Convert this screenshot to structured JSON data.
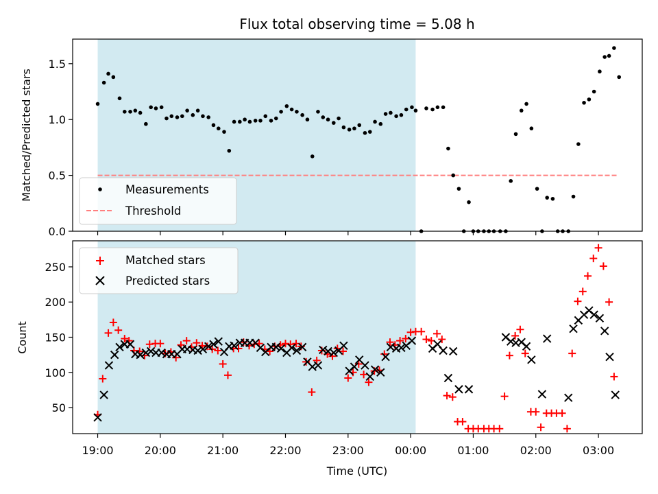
{
  "chart_data": {
    "type": "scatter",
    "title": "Flux total observing time = 5.08 h",
    "xlabel": "Time (UTC)",
    "x_ticks": [
      "19:00",
      "20:00",
      "21:00",
      "22:00",
      "23:00",
      "00:00",
      "01:00",
      "02:00",
      "03:00"
    ],
    "x_range_hours": [
      18.6,
      27.7
    ],
    "shaded_interval_hours": [
      19.0,
      24.08
    ],
    "colors": {
      "shade": "#add8e6",
      "measurements": "#000000",
      "threshold": "#ff7f7f",
      "matched": "#ff0000",
      "predicted": "#000000"
    },
    "top": {
      "ylabel": "Matched/Predicted stars",
      "ylim": [
        0,
        1.72
      ],
      "yticks": [
        "0.0",
        "0.5",
        "1.0",
        "1.5"
      ],
      "legend": {
        "placement": "lower-left",
        "entries": [
          "Measurements",
          "Threshold"
        ]
      },
      "threshold": {
        "name": "Threshold",
        "value": 0.5,
        "x_range_hours": [
          19.0,
          27.3
        ]
      },
      "measurements": {
        "name": "Measurements",
        "points": [
          [
            19.0,
            1.14
          ],
          [
            19.1,
            1.33
          ],
          [
            19.17,
            1.41
          ],
          [
            19.25,
            1.38
          ],
          [
            19.35,
            1.19
          ],
          [
            19.43,
            1.07
          ],
          [
            19.52,
            1.07
          ],
          [
            19.6,
            1.08
          ],
          [
            19.68,
            1.06
          ],
          [
            19.77,
            0.96
          ],
          [
            19.85,
            1.11
          ],
          [
            19.93,
            1.1
          ],
          [
            20.02,
            1.11
          ],
          [
            20.1,
            1.01
          ],
          [
            20.18,
            1.03
          ],
          [
            20.27,
            1.02
          ],
          [
            20.35,
            1.03
          ],
          [
            20.43,
            1.08
          ],
          [
            20.52,
            1.04
          ],
          [
            20.6,
            1.08
          ],
          [
            20.68,
            1.03
          ],
          [
            20.77,
            1.02
          ],
          [
            20.85,
            0.95
          ],
          [
            20.93,
            0.92
          ],
          [
            21.02,
            0.89
          ],
          [
            21.1,
            0.72
          ],
          [
            21.18,
            0.98
          ],
          [
            21.27,
            0.98
          ],
          [
            21.35,
            1.0
          ],
          [
            21.43,
            0.98
          ],
          [
            21.52,
            0.99
          ],
          [
            21.6,
            0.99
          ],
          [
            21.68,
            1.03
          ],
          [
            21.77,
            0.99
          ],
          [
            21.85,
            1.01
          ],
          [
            21.93,
            1.07
          ],
          [
            22.02,
            1.12
          ],
          [
            22.1,
            1.09
          ],
          [
            22.18,
            1.07
          ],
          [
            22.27,
            1.04
          ],
          [
            22.35,
            1.0
          ],
          [
            22.43,
            0.67
          ],
          [
            22.52,
            1.07
          ],
          [
            22.6,
            1.02
          ],
          [
            22.68,
            1.0
          ],
          [
            22.77,
            0.97
          ],
          [
            22.85,
            1.01
          ],
          [
            22.93,
            0.93
          ],
          [
            23.02,
            0.91
          ],
          [
            23.1,
            0.92
          ],
          [
            23.18,
            0.95
          ],
          [
            23.27,
            0.88
          ],
          [
            23.35,
            0.89
          ],
          [
            23.43,
            0.98
          ],
          [
            23.52,
            0.96
          ],
          [
            23.6,
            1.05
          ],
          [
            23.68,
            1.06
          ],
          [
            23.77,
            1.03
          ],
          [
            23.85,
            1.04
          ],
          [
            23.93,
            1.09
          ],
          [
            24.02,
            1.11
          ],
          [
            24.08,
            1.08
          ],
          [
            24.17,
            0.0
          ],
          [
            24.25,
            1.1
          ],
          [
            24.35,
            1.09
          ],
          [
            24.43,
            1.11
          ],
          [
            24.52,
            1.11
          ],
          [
            24.6,
            0.74
          ],
          [
            24.68,
            0.5
          ],
          [
            24.77,
            0.38
          ],
          [
            24.85,
            0.0
          ],
          [
            24.93,
            0.26
          ],
          [
            25.0,
            0.0
          ],
          [
            25.08,
            0.0
          ],
          [
            25.17,
            0.0
          ],
          [
            25.25,
            0.0
          ],
          [
            25.33,
            0.0
          ],
          [
            25.43,
            0.0
          ],
          [
            25.52,
            0.0
          ],
          [
            25.6,
            0.45
          ],
          [
            25.68,
            0.87
          ],
          [
            25.77,
            1.08
          ],
          [
            25.85,
            1.14
          ],
          [
            25.93,
            0.92
          ],
          [
            26.02,
            0.38
          ],
          [
            26.1,
            0.0
          ],
          [
            26.18,
            0.3
          ],
          [
            26.27,
            0.29
          ],
          [
            26.35,
            0.0
          ],
          [
            26.43,
            0.0
          ],
          [
            26.52,
            0.0
          ],
          [
            26.6,
            0.31
          ],
          [
            26.68,
            0.78
          ],
          [
            26.77,
            1.15
          ],
          [
            26.85,
            1.18
          ],
          [
            26.93,
            1.25
          ],
          [
            27.02,
            1.43
          ],
          [
            27.1,
            1.56
          ],
          [
            27.17,
            1.57
          ],
          [
            27.25,
            1.64
          ],
          [
            27.33,
            1.38
          ]
        ]
      }
    },
    "bottom": {
      "ylabel": "Count",
      "ylim": [
        13,
        287
      ],
      "yticks": [
        "50",
        "100",
        "150",
        "200",
        "250"
      ],
      "legend": {
        "placement": "upper-left",
        "entries": [
          "Matched stars",
          "Predicted stars"
        ]
      },
      "matched": {
        "name": "Matched stars",
        "points": [
          [
            19.0,
            40
          ],
          [
            19.08,
            91
          ],
          [
            19.17,
            156
          ],
          [
            19.25,
            171
          ],
          [
            19.33,
            160
          ],
          [
            19.43,
            148
          ],
          [
            19.5,
            145
          ],
          [
            19.58,
            131
          ],
          [
            19.67,
            130
          ],
          [
            19.75,
            124
          ],
          [
            19.83,
            140
          ],
          [
            19.92,
            141
          ],
          [
            20.0,
            141
          ],
          [
            20.08,
            127
          ],
          [
            20.17,
            129
          ],
          [
            20.25,
            121
          ],
          [
            20.33,
            139
          ],
          [
            20.42,
            145
          ],
          [
            20.5,
            136
          ],
          [
            20.58,
            142
          ],
          [
            20.67,
            138
          ],
          [
            20.75,
            137
          ],
          [
            20.83,
            133
          ],
          [
            20.92,
            131
          ],
          [
            21.0,
            112
          ],
          [
            21.08,
            96
          ],
          [
            21.17,
            134
          ],
          [
            21.25,
            134
          ],
          [
            21.33,
            143
          ],
          [
            21.42,
            138
          ],
          [
            21.5,
            140
          ],
          [
            21.58,
            141
          ],
          [
            21.67,
            133
          ],
          [
            21.75,
            130
          ],
          [
            21.83,
            137
          ],
          [
            21.92,
            139
          ],
          [
            22.0,
            141
          ],
          [
            22.08,
            140
          ],
          [
            22.17,
            141
          ],
          [
            22.25,
            137
          ],
          [
            22.33,
            115
          ],
          [
            22.42,
            72
          ],
          [
            22.5,
            117
          ],
          [
            22.58,
            131
          ],
          [
            22.67,
            126
          ],
          [
            22.75,
            123
          ],
          [
            22.83,
            134
          ],
          [
            22.92,
            130
          ],
          [
            23.0,
            92
          ],
          [
            23.08,
            100
          ],
          [
            23.17,
            112
          ],
          [
            23.25,
            97
          ],
          [
            23.33,
            86
          ],
          [
            23.42,
            102
          ],
          [
            23.5,
            103
          ],
          [
            23.58,
            126
          ],
          [
            23.67,
            143
          ],
          [
            23.75,
            139
          ],
          [
            23.83,
            145
          ],
          [
            23.92,
            148
          ],
          [
            24.0,
            157
          ],
          [
            24.08,
            158
          ],
          [
            24.17,
            158
          ],
          [
            24.25,
            147
          ],
          [
            24.33,
            145
          ],
          [
            24.42,
            155
          ],
          [
            24.5,
            147
          ],
          [
            24.58,
            67
          ],
          [
            24.67,
            65
          ],
          [
            24.75,
            30
          ],
          [
            24.83,
            30
          ],
          [
            24.92,
            20
          ],
          [
            25.0,
            20
          ],
          [
            25.08,
            20
          ],
          [
            25.17,
            20
          ],
          [
            25.25,
            20
          ],
          [
            25.33,
            20
          ],
          [
            25.42,
            20
          ],
          [
            25.5,
            66
          ],
          [
            25.58,
            124
          ],
          [
            25.67,
            152
          ],
          [
            25.75,
            161
          ],
          [
            25.83,
            127
          ],
          [
            25.92,
            44
          ],
          [
            26.0,
            44
          ],
          [
            26.08,
            22
          ],
          [
            26.17,
            42
          ],
          [
            26.25,
            42
          ],
          [
            26.33,
            42
          ],
          [
            26.42,
            42
          ],
          [
            26.5,
            20
          ],
          [
            26.58,
            127
          ],
          [
            26.67,
            201
          ],
          [
            26.75,
            215
          ],
          [
            26.83,
            237
          ],
          [
            26.92,
            262
          ],
          [
            27.0,
            277
          ],
          [
            27.08,
            251
          ],
          [
            27.17,
            200
          ],
          [
            27.25,
            94
          ]
        ]
      },
      "predicted": {
        "name": "Predicted stars",
        "points": [
          [
            19.0,
            36
          ],
          [
            19.1,
            68
          ],
          [
            19.18,
            110
          ],
          [
            19.27,
            125
          ],
          [
            19.35,
            136
          ],
          [
            19.43,
            140
          ],
          [
            19.52,
            140
          ],
          [
            19.6,
            126
          ],
          [
            19.68,
            125
          ],
          [
            19.77,
            128
          ],
          [
            19.85,
            130
          ],
          [
            19.93,
            128
          ],
          [
            20.02,
            128
          ],
          [
            20.1,
            126
          ],
          [
            20.18,
            126
          ],
          [
            20.27,
            126
          ],
          [
            20.35,
            133
          ],
          [
            20.43,
            133
          ],
          [
            20.52,
            132
          ],
          [
            20.6,
            131
          ],
          [
            20.68,
            133
          ],
          [
            20.77,
            137
          ],
          [
            20.85,
            140
          ],
          [
            20.93,
            144
          ],
          [
            21.02,
            129
          ],
          [
            21.1,
            137
          ],
          [
            21.18,
            138
          ],
          [
            21.27,
            142
          ],
          [
            21.35,
            142
          ],
          [
            21.43,
            142
          ],
          [
            21.52,
            142
          ],
          [
            21.6,
            135
          ],
          [
            21.68,
            129
          ],
          [
            21.77,
            136
          ],
          [
            21.85,
            136
          ],
          [
            21.93,
            134
          ],
          [
            22.02,
            128
          ],
          [
            22.1,
            135
          ],
          [
            22.18,
            131
          ],
          [
            22.27,
            136
          ],
          [
            22.35,
            115
          ],
          [
            22.43,
            108
          ],
          [
            22.52,
            110
          ],
          [
            22.6,
            132
          ],
          [
            22.68,
            130
          ],
          [
            22.77,
            128
          ],
          [
            22.85,
            131
          ],
          [
            22.93,
            138
          ],
          [
            23.02,
            102
          ],
          [
            23.1,
            108
          ],
          [
            23.18,
            118
          ],
          [
            23.27,
            110
          ],
          [
            23.35,
            94
          ],
          [
            23.43,
            104
          ],
          [
            23.52,
            100
          ],
          [
            23.6,
            122
          ],
          [
            23.68,
            136
          ],
          [
            23.77,
            134
          ],
          [
            23.85,
            135
          ],
          [
            23.93,
            138
          ],
          [
            24.02,
            145
          ],
          [
            24.35,
            134
          ],
          [
            24.43,
            140
          ],
          [
            24.52,
            131
          ],
          [
            24.6,
            92
          ],
          [
            24.68,
            130
          ],
          [
            24.77,
            76
          ],
          [
            24.93,
            76
          ],
          [
            25.52,
            150
          ],
          [
            25.6,
            144
          ],
          [
            25.68,
            142
          ],
          [
            25.77,
            143
          ],
          [
            25.85,
            137
          ],
          [
            25.93,
            118
          ],
          [
            26.1,
            69
          ],
          [
            26.18,
            148
          ],
          [
            26.52,
            64
          ],
          [
            26.6,
            162
          ],
          [
            26.68,
            174
          ],
          [
            26.77,
            182
          ],
          [
            26.85,
            188
          ],
          [
            26.93,
            182
          ],
          [
            27.02,
            177
          ],
          [
            27.1,
            159
          ],
          [
            27.18,
            122
          ],
          [
            27.27,
            68
          ]
        ]
      }
    }
  }
}
